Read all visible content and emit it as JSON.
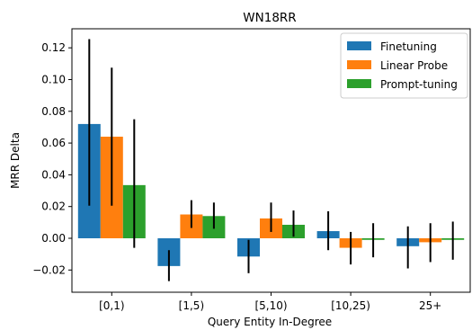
{
  "chart_data": {
    "type": "bar",
    "title": "WN18RR",
    "xlabel": "Query Entity In-Degree",
    "ylabel": "MRR Delta",
    "categories": [
      "[0,1)",
      "[1,5)",
      "[5,10)",
      "[10,25)",
      "25+"
    ],
    "ylim": [
      -0.034,
      0.132
    ],
    "yticks": [
      "0.12",
      "0.10",
      "0.08",
      "0.06",
      "0.04",
      "0.02",
      "0.00",
      "−0.02"
    ],
    "ytick_values": [
      0.12,
      0.1,
      0.08,
      0.06,
      0.04,
      0.02,
      0.0,
      -0.02
    ],
    "legend_position": "top-right",
    "grid": false,
    "series": [
      {
        "name": "Finetuning",
        "color": "#1f77b4",
        "values": [
          0.072,
          -0.0175,
          -0.0115,
          0.0045,
          -0.005
        ],
        "err_low": [
          0.0205,
          -0.027,
          -0.022,
          -0.0075,
          -0.019
        ],
        "err_high": [
          0.1255,
          -0.0075,
          -0.001,
          0.017,
          0.0075
        ]
      },
      {
        "name": "Linear Probe",
        "color": "#ff7f0e",
        "values": [
          0.064,
          0.015,
          0.0125,
          -0.006,
          -0.0025
        ],
        "err_low": [
          0.0205,
          0.0065,
          0.004,
          -0.0165,
          -0.015
        ],
        "err_high": [
          0.1075,
          0.024,
          0.0225,
          0.004,
          0.0095
        ]
      },
      {
        "name": "Prompt-tuning",
        "color": "#2ca02c",
        "values": [
          0.0335,
          0.014,
          0.0085,
          -0.001,
          -0.001
        ],
        "err_low": [
          -0.006,
          0.006,
          0.001,
          -0.012,
          -0.0135
        ],
        "err_high": [
          0.075,
          0.0225,
          0.0175,
          0.0095,
          0.0105
        ]
      }
    ]
  }
}
